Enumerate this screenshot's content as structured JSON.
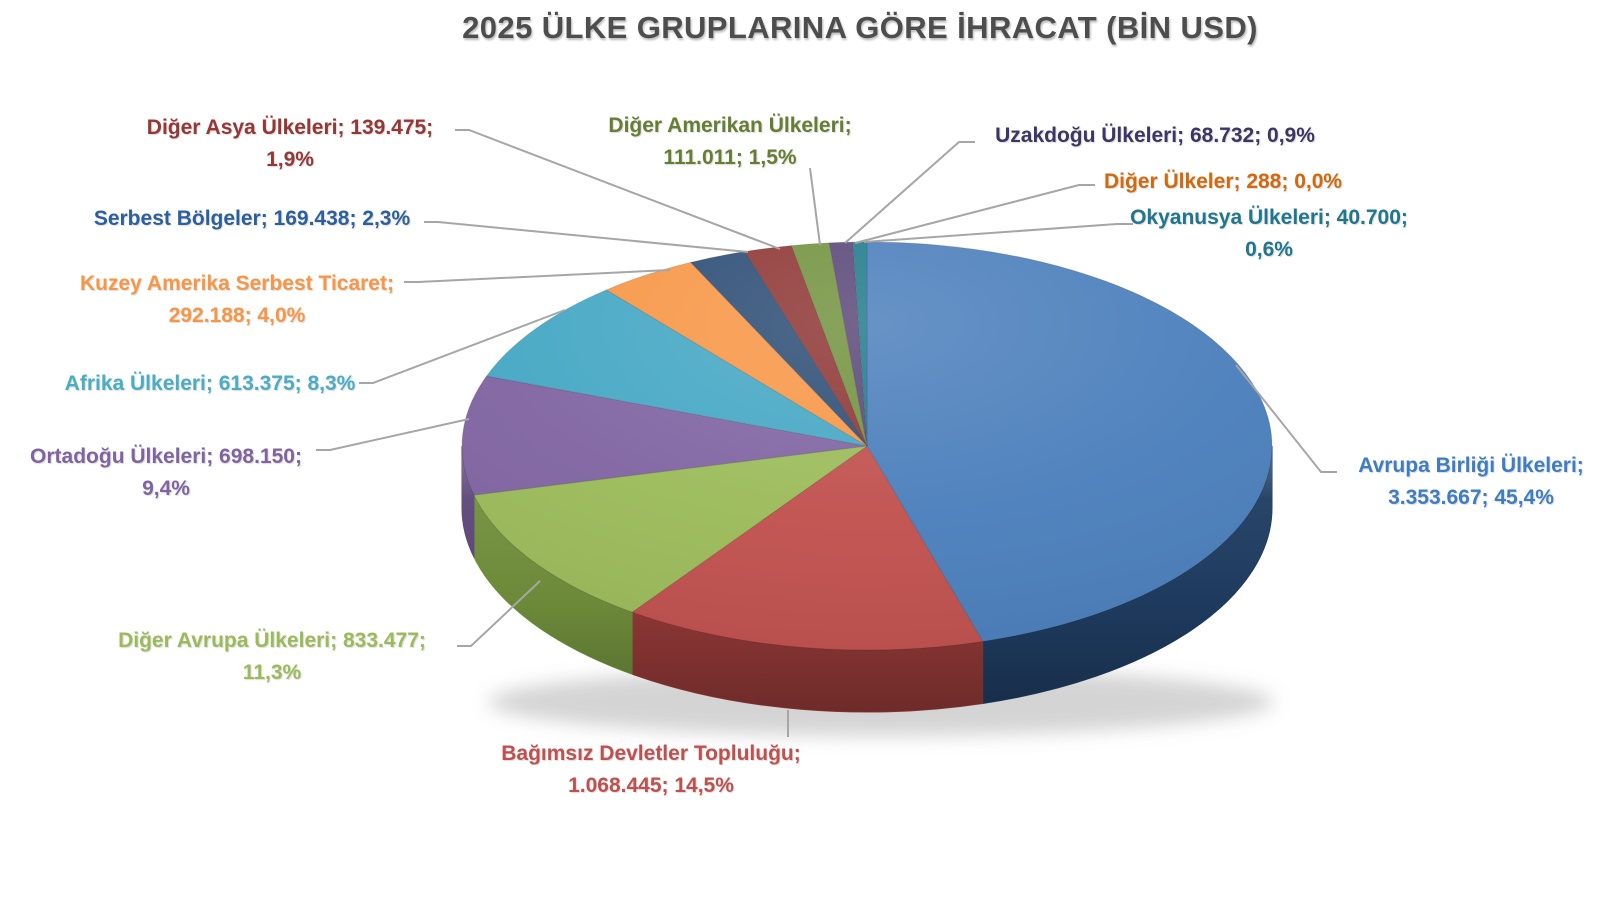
{
  "title": "2025 ÜLKE GRUPLARINA GÖRE İHRACAT (BİN USD)",
  "chart_data": {
    "type": "pie",
    "title": "2025 ÜLKE GRUPLARINA GÖRE İHRACAT (BİN USD)",
    "unit": "BİN USD",
    "style": "3d-pie",
    "rotation_start_deg": 0,
    "clockwise": true,
    "legend": "none (data labels with leader lines)",
    "leader_line_color": "#A6A6A6",
    "series": [
      {
        "id": "avrupa-birligi",
        "label": "Avrupa Birliği Ülkeleri",
        "value": 3353667,
        "display_value": "3.353.667",
        "pct": "45,4%",
        "color": "#4A7EBB",
        "side_color": "#1F3D62",
        "label_color": "#3E7CC4",
        "label_lines": [
          "Avrupa Birliği Ülkeleri;",
          "3.353.667; 45,4%"
        ]
      },
      {
        "id": "bagimsiz-devletler",
        "label": "Bağımsız Devletler Topluluğu",
        "value": 1068445,
        "display_value": "1.068.445",
        "pct": "14,5%",
        "color": "#C0504D",
        "side_color": "#943A38",
        "label_color": "#C0504D",
        "label_lines": [
          "Bağımsız Devletler Topluluğu;",
          "1.068.445; 14,5%"
        ]
      },
      {
        "id": "diger-avrupa",
        "label": "Diğer Avrupa Ülkeleri",
        "value": 833477,
        "display_value": "833.477",
        "pct": "11,3%",
        "color": "#9BBB59",
        "side_color": "#71903C",
        "label_color": "#9BBB59",
        "label_lines": [
          "Diğer Avrupa Ülkeleri; 833.477;",
          "11,3%"
        ]
      },
      {
        "id": "ortadogu",
        "label": "Ortadoğu Ülkeleri",
        "value": 698150,
        "display_value": "698.150",
        "pct": "9,4%",
        "color": "#8064A2",
        "side_color": "#5D477A",
        "label_color": "#8064A2",
        "label_lines": [
          "Ortadoğu Ülkeleri; 698.150;",
          "9,4%"
        ]
      },
      {
        "id": "afrika",
        "label": "Afrika Ülkeleri",
        "value": 613375,
        "display_value": "613.375",
        "pct": "8,3%",
        "color": "#44A7C4",
        "side_color": "#337E95",
        "label_color": "#4BACC6",
        "label_lines": [
          "Afrika Ülkeleri; 613.375; 8,3%"
        ]
      },
      {
        "id": "kuzey-amerika",
        "label": "Kuzey Amerika Serbest Ticaret",
        "value": 292188,
        "display_value": "292.188",
        "pct": "4,0%",
        "color": "#F79646",
        "side_color": "#BF6F2E",
        "label_color": "#F79646",
        "label_lines": [
          "Kuzey Amerika Serbest Ticaret;",
          "292.188; 4,0%"
        ]
      },
      {
        "id": "serbest-bolgeler",
        "label": "Serbest Bölgeler",
        "value": 169438,
        "display_value": "169.438",
        "pct": "2,3%",
        "color": "#2C4D75",
        "side_color": "#1C3450",
        "label_color": "#2C5F9E",
        "label_lines": [
          "Serbest Bölgeler; 169.438; 2,3%"
        ]
      },
      {
        "id": "diger-asya",
        "label": "Diğer Asya Ülkeleri",
        "value": 139475,
        "display_value": "139.475",
        "pct": "1,9%",
        "color": "#8E3634",
        "side_color": "#662523",
        "label_color": "#943735",
        "label_lines": [
          "Diğer Asya Ülkeleri; 139.475;",
          "1,9%"
        ]
      },
      {
        "id": "diger-amerikan",
        "label": "Diğer Amerikan Ülkeleri",
        "value": 111011,
        "display_value": "111.011",
        "pct": "1,5%",
        "color": "#72923E",
        "side_color": "#52691F",
        "label_color": "#647E33",
        "label_lines": [
          "Diğer Amerikan Ülkeleri;",
          "111.011; 1,5%"
        ]
      },
      {
        "id": "uzakdogu",
        "label": "Uzakdoğu Ülkeleri",
        "value": 68732,
        "display_value": "68.732",
        "pct": "0,9%",
        "color": "#5A4678",
        "side_color": "#3F3055",
        "label_color": "#3D3566",
        "label_lines": [
          "Uzakdoğu Ülkeleri; 68.732; 0,9%"
        ]
      },
      {
        "id": "diger-ulkeler",
        "label": "Diğer Ülkeler",
        "value": 288,
        "display_value": "288",
        "pct": "0,0%",
        "color": "#E36C0A",
        "side_color": "#A84F06",
        "label_color": "#D2690E",
        "label_lines": [
          "Diğer Ülkeler; 288; 0,0%"
        ]
      },
      {
        "id": "okyanusya",
        "label": "Okyanusya Ülkeleri",
        "value": 40700,
        "display_value": "40.700",
        "pct": "0,6%",
        "color": "#1F7A8C",
        "side_color": "#145564",
        "label_color": "#20758F",
        "label_lines": [
          "Okyanusya Ülkeleri; 40.700;",
          "0,6%"
        ]
      }
    ]
  }
}
